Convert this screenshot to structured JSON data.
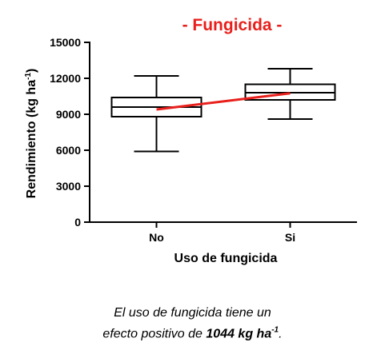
{
  "chart_data": {
    "type": "boxplot",
    "title": "- Fungicida -",
    "title_color": "#e8201c",
    "xlabel": "Uso de fungicida",
    "ylabel": "Rendimiento (kg ha",
    "ylabel_sup": "-1",
    "ylabel_close": ")",
    "ylim": [
      0,
      15000
    ],
    "yticks": [
      0,
      3000,
      6000,
      9000,
      12000,
      15000
    ],
    "ytick_labels": [
      "0",
      "3000",
      "6000",
      "9000",
      "12000",
      "15000"
    ],
    "grid": false,
    "categories": [
      "No",
      "Si"
    ],
    "boxes": [
      {
        "category": "No",
        "min": 5900,
        "q1": 8800,
        "median": 9600,
        "q3": 10400,
        "max": 12200
      },
      {
        "category": "Si",
        "min": 8600,
        "q1": 10200,
        "median": 10800,
        "q3": 11500,
        "max": 12800
      }
    ],
    "trend_line": {
      "color": "#e8201c",
      "from": 9400,
      "to": 10750
    }
  },
  "caption": {
    "line1": "El uso de fungicida tiene un",
    "line2_prefix": "efecto positivo de ",
    "line2_bold": "1044 kg ha",
    "line2_sup": "-1",
    "line2_suffix": "."
  }
}
